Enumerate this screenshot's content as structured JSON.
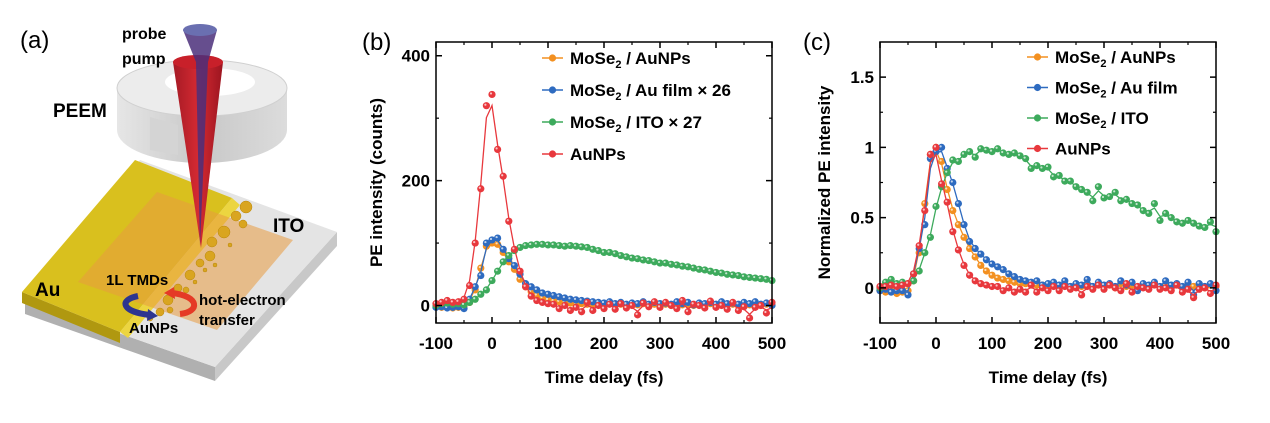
{
  "panel_a": {
    "label": "(a)",
    "labels": {
      "probe": "probe",
      "pump": "pump",
      "peem": "PEEM",
      "ito": "ITO",
      "au": "Au",
      "tmd": "1L TMDs",
      "aunps": "AuNPs",
      "hot1": "hot-electron",
      "hot2": "transfer"
    },
    "colors": {
      "gold": "#d9c01e",
      "tmd": "#e8a040",
      "probe": "#4b4a9a",
      "pump": "#c8202a",
      "arrow_blue": "#2d3590",
      "arrow_red": "#e53a26"
    }
  },
  "chart_data": [
    {
      "panel_label": "(b)",
      "type": "scatter",
      "xlabel": "Time delay (fs)",
      "ylabel": "PE intensity (counts)",
      "xlim": [
        -100,
        500
      ],
      "ylim": [
        -28,
        422
      ],
      "xticks": [
        -100,
        0,
        100,
        200,
        300,
        400,
        500
      ],
      "xtick_labels": [
        "-100",
        "0",
        "100",
        "200",
        "300",
        "400",
        "500"
      ],
      "yticks": [
        0,
        200,
        400
      ],
      "ytick_labels": [
        "0",
        "200",
        "400"
      ],
      "x_start": -100,
      "x_step": 10,
      "legend_position": "top-right",
      "series": [
        {
          "name": "MoSe2 / AuNPs",
          "legend": {
            "pre": "MoSe",
            "sub": "2",
            "post": " / AuNPs"
          },
          "color": "#f39020",
          "values": [
            -2,
            -3,
            -2,
            -4,
            -3,
            -2,
            5,
            25,
            60,
            95,
            100,
            98,
            85,
            70,
            58,
            42,
            30,
            22,
            16,
            12,
            9,
            7,
            6,
            5,
            4,
            3,
            3,
            2,
            2,
            2,
            1,
            3,
            1,
            2,
            0,
            2,
            1,
            3,
            0,
            2,
            1,
            2,
            0,
            3,
            1,
            2,
            0,
            2,
            1,
            3,
            0,
            2,
            1,
            2,
            0,
            3,
            1,
            2,
            0,
            2,
            1
          ]
        },
        {
          "name": "MoSe2 / Au film × 26",
          "legend": {
            "pre": "MoSe",
            "sub": "2",
            "post": " / Au film × 26"
          },
          "color": "#2e6bc0",
          "values": [
            -3,
            -2,
            -4,
            -3,
            -2,
            -5,
            10,
            30,
            48,
            100,
            105,
            108,
            90,
            75,
            64,
            50,
            35,
            30,
            25,
            20,
            18,
            16,
            14,
            12,
            10,
            9,
            8,
            7,
            6,
            5,
            4,
            6,
            3,
            5,
            2,
            4,
            3,
            6,
            2,
            5,
            3,
            4,
            2,
            6,
            3,
            5,
            1,
            4,
            3,
            5,
            2,
            6,
            3,
            4,
            2,
            5,
            3,
            6,
            2,
            4,
            0
          ]
        },
        {
          "name": "MoSe2 / ITO × 27",
          "legend": {
            "pre": "MoSe",
            "sub": "2",
            "post": " / ITO × 27"
          },
          "color": "#3daa5c",
          "values": [
            0,
            3,
            4,
            2,
            3,
            1,
            5,
            10,
            18,
            25,
            40,
            55,
            70,
            80,
            88,
            93,
            96,
            97,
            98,
            98,
            97,
            97,
            96,
            95,
            96,
            95,
            94,
            93,
            90,
            88,
            85,
            85,
            83,
            80,
            78,
            76,
            75,
            73,
            72,
            70,
            68,
            68,
            66,
            65,
            63,
            62,
            60,
            58,
            57,
            55,
            53,
            52,
            50,
            49,
            48,
            46,
            45,
            44,
            43,
            42,
            40
          ]
        },
        {
          "name": "AuNPs",
          "legend": {
            "pre": "AuNPs",
            "sub": "",
            "post": ""
          },
          "color": "#e8383d",
          "values": [
            3,
            5,
            8,
            5,
            6,
            10,
            32,
            100,
            187,
            320,
            338,
            250,
            207,
            135,
            90,
            55,
            30,
            15,
            8,
            5,
            3,
            2,
            -5,
            0,
            -8,
            -3,
            -10,
            5,
            -8,
            0,
            -5,
            2,
            -6,
            3,
            -4,
            0,
            -15,
            4,
            -2,
            6,
            -3,
            5,
            0,
            -5,
            8,
            -10,
            2,
            0,
            -4,
            7,
            -3,
            0,
            -6,
            5,
            -8,
            -2,
            -20,
            -3,
            0,
            -12,
            5
          ]
        }
      ]
    },
    {
      "panel_label": "(c)",
      "type": "scatter",
      "xlabel": "Time delay (fs)",
      "ylabel": "Normalized PE intensity",
      "xlim": [
        -100,
        500
      ],
      "ylim": [
        -0.25,
        1.75
      ],
      "xticks": [
        -100,
        0,
        100,
        200,
        300,
        400,
        500
      ],
      "xtick_labels": [
        "-100",
        "0",
        "100",
        "200",
        "300",
        "400",
        "500"
      ],
      "yticks": [
        0,
        0.5,
        1,
        1.5
      ],
      "ytick_labels": [
        "0",
        "0.5",
        "1",
        "1.5"
      ],
      "x_start": -100,
      "x_step": 10,
      "legend_position": "top-right",
      "series": [
        {
          "name": "MoSe2 / AuNPs",
          "legend": {
            "pre": "MoSe",
            "sub": "2",
            "post": " / AuNPs"
          },
          "color": "#f39020",
          "values": [
            -0.02,
            -0.03,
            -0.02,
            -0.04,
            -0.03,
            -0.02,
            0.05,
            0.25,
            0.6,
            0.95,
            1.0,
            0.9,
            0.7,
            0.55,
            0.45,
            0.36,
            0.28,
            0.22,
            0.16,
            0.12,
            0.09,
            0.07,
            0.06,
            0.05,
            0.04,
            0.03,
            0.03,
            0.02,
            0.02,
            0.02,
            0.01,
            0.03,
            0.01,
            0.02,
            0,
            0.02,
            0.01,
            0.03,
            0,
            0.02,
            0.01,
            0.02,
            0,
            0.03,
            0.01,
            0.02,
            0,
            0.02,
            0.01,
            0.03,
            0,
            0.02,
            0.01,
            0.02,
            0,
            0.03,
            0.01,
            0.02,
            0,
            0.02,
            0.01
          ]
        },
        {
          "name": "MoSe2 / Au film",
          "legend": {
            "pre": "MoSe",
            "sub": "2",
            "post": " / Au film"
          },
          "color": "#2e6bc0",
          "values": [
            -0.02,
            -0.01,
            -0.03,
            -0.02,
            -0.02,
            -0.05,
            0.1,
            0.28,
            0.45,
            0.92,
            0.97,
            1.0,
            0.85,
            0.75,
            0.6,
            0.45,
            0.33,
            0.28,
            0.24,
            0.2,
            0.17,
            0.15,
            0.13,
            0.1,
            0.08,
            0.06,
            0.05,
            0.04,
            0.05,
            0.02,
            0.03,
            0.04,
            0.02,
            0.05,
            0.01,
            0.03,
            0.02,
            0.06,
            0.01,
            0.04,
            0.02,
            0.03,
            0.01,
            0.05,
            0.02,
            0.04,
            -0.02,
            0.03,
            0.02,
            0.04,
            0.01,
            0.05,
            0.02,
            0.03,
            0.01,
            0.04,
            -0.05,
            0.03,
            0.01,
            0.03,
            -0.02
          ]
        },
        {
          "name": "MoSe2 / ITO",
          "legend": {
            "pre": "MoSe",
            "sub": "2",
            "post": " / ITO"
          },
          "color": "#3daa5c",
          "values": [
            0,
            0.04,
            0.06,
            0.03,
            0.04,
            0.03,
            0.05,
            0.12,
            0.25,
            0.36,
            0.58,
            0.72,
            0.82,
            0.91,
            0.9,
            0.95,
            0.97,
            0.93,
            0.99,
            0.98,
            0.97,
            0.99,
            0.96,
            0.95,
            0.96,
            0.94,
            0.92,
            0.85,
            0.87,
            0.85,
            0.86,
            0.79,
            0.8,
            0.76,
            0.76,
            0.72,
            0.7,
            0.68,
            0.62,
            0.72,
            0.64,
            0.65,
            0.68,
            0.62,
            0.63,
            0.6,
            0.59,
            0.55,
            0.53,
            0.6,
            0.48,
            0.53,
            0.5,
            0.47,
            0.46,
            0.48,
            0.46,
            0.44,
            0.43,
            0.47,
            0.4
          ]
        },
        {
          "name": "AuNPs",
          "legend": {
            "pre": "AuNPs",
            "sub": "",
            "post": ""
          },
          "color": "#e8383d",
          "values": [
            0.01,
            0.01,
            0.02,
            0.01,
            0.02,
            0.03,
            0.1,
            0.3,
            0.55,
            0.95,
            1.0,
            0.74,
            0.61,
            0.4,
            0.27,
            0.16,
            0.09,
            0.05,
            0.03,
            0.02,
            0.01,
            0.01,
            -0.02,
            0,
            -0.03,
            -0.01,
            -0.03,
            0.02,
            -0.03,
            0,
            -0.02,
            0.01,
            -0.02,
            0.01,
            -0.01,
            0,
            -0.05,
            0.01,
            -0.01,
            0.02,
            -0.01,
            0.02,
            0,
            -0.02,
            0.03,
            -0.03,
            0.01,
            0,
            -0.01,
            0.02,
            -0.01,
            0,
            -0.02,
            0.02,
            -0.03,
            -0.01,
            -0.07,
            -0.01,
            0,
            -0.04,
            0.02
          ]
        }
      ]
    }
  ]
}
